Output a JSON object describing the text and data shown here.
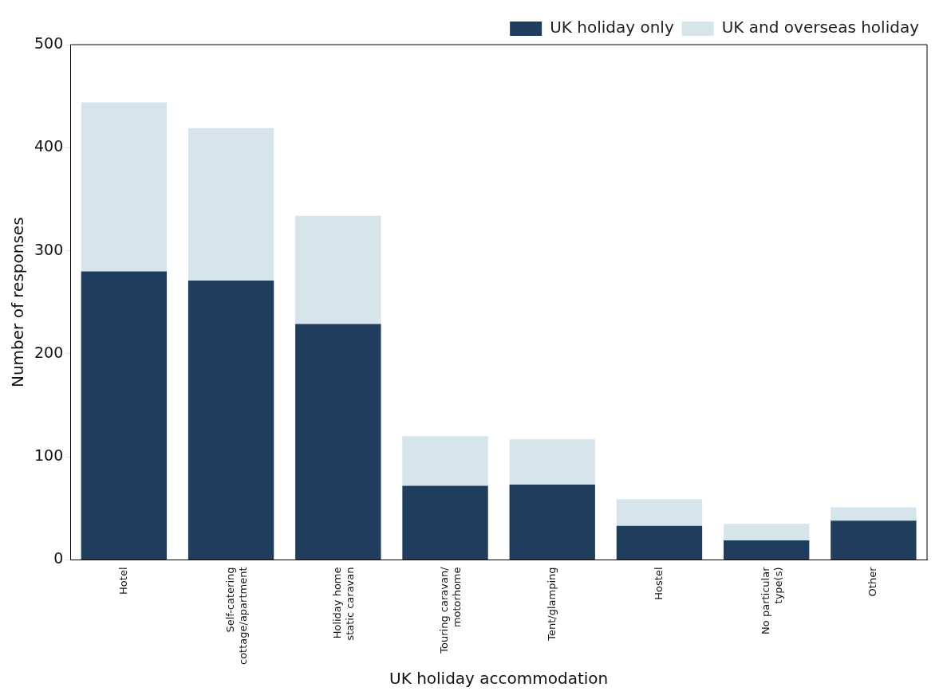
{
  "chart_data": {
    "type": "bar",
    "xlabel": "UK holiday accommodation",
    "ylabel": "Number of responses",
    "categories": [
      "Hotel",
      "Self-catering\ncottage/apartment",
      "Holiday home\nstatic caravan",
      "Touring caravan/\nmotorhome",
      "Tent/glamping",
      "Hostel",
      "No particular\ntype(s)",
      "Other"
    ],
    "series": [
      {
        "name": "UK holiday only",
        "color": "#1f3d5c",
        "values": [
          280,
          271,
          229,
          72,
          73,
          33,
          19,
          38
        ]
      },
      {
        "name": "UK and overseas holiday",
        "color": "#d6e4ec",
        "values": [
          164,
          148,
          105,
          48,
          44,
          26,
          16,
          13
        ]
      }
    ],
    "stacked": true,
    "ylim": [
      0,
      500
    ],
    "yticks": [
      0,
      100,
      200,
      300,
      400,
      500
    ],
    "grid": false,
    "legend": "top right"
  }
}
